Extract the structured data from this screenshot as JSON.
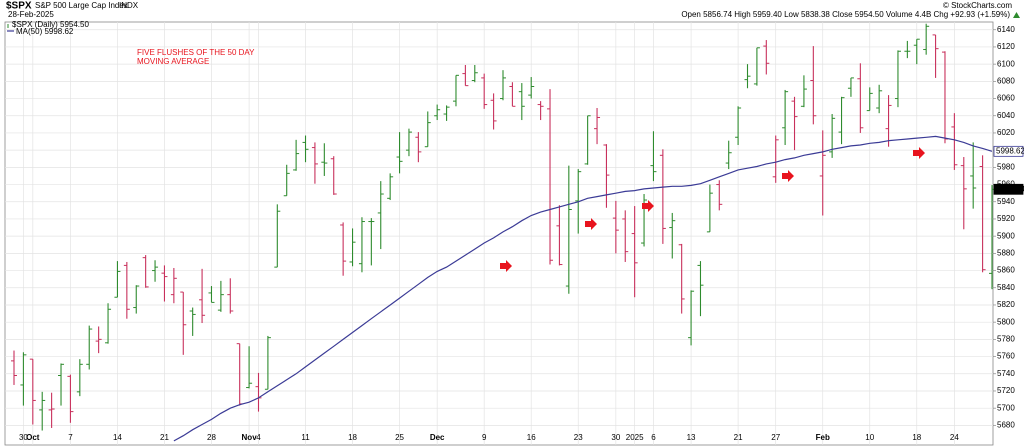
{
  "chart_data": {
    "type": "ohlc",
    "title": "$SPX",
    "subtitle": "S&P 500 Large Cap Index",
    "exchange": "INDX",
    "date": "28-Feb-2025",
    "quote": "Open 5856.74 High 5959.40 Low 5838.38 Close 5954.50 Volume 4.4B Chg +92.93 (+1.59%)",
    "credit": "© StockCharts.com",
    "annotation": [
      "FIVE FLUSHES OF THE 50 DAY",
      "MOVING AVERAGE"
    ],
    "categories": [
      null,
      "30",
      "Oct",
      null,
      null,
      null,
      "7",
      null,
      null,
      null,
      null,
      "14",
      null,
      null,
      null,
      null,
      "21",
      null,
      null,
      null,
      null,
      "28",
      null,
      null,
      null,
      "Nov",
      "4",
      null,
      null,
      null,
      null,
      "11",
      null,
      null,
      null,
      null,
      "18",
      null,
      null,
      null,
      null,
      "25",
      null,
      null,
      null,
      "Dec",
      null,
      null,
      null,
      null,
      "9",
      null,
      null,
      null,
      null,
      "16",
      null,
      null,
      null,
      null,
      "23",
      null,
      null,
      null,
      "30",
      null,
      "2025",
      null,
      "6",
      null,
      null,
      null,
      "13",
      null,
      null,
      null,
      null,
      "21",
      null,
      null,
      null,
      "27",
      null,
      null,
      null,
      null,
      "Feb",
      null,
      null,
      null,
      null,
      "10",
      null,
      null,
      null,
      null,
      "18",
      null,
      null,
      null,
      "24",
      null,
      null,
      null,
      null
    ],
    "series": [
      {
        "name": "$SPX (Daily) 5954.50",
        "up_color": "#2e8b2e",
        "down_color": "#c8305c",
        "open": [
          5755,
          5727,
          5757,
          5698,
          5698,
          5738,
          5737,
          5719,
          5751,
          5778,
          5776,
          5829,
          5866,
          5817,
          5875,
          5860,
          5857,
          5832,
          5835,
          5813,
          5826,
          5834,
          5814,
          5832,
          5775,
          5724,
          5725,
          5722,
          5864,
          5947,
          5977,
          6009,
          6003,
          5986,
          5990,
          5913,
          5870,
          5868,
          5917,
          5927,
          5944,
          5992,
          6000,
          6015,
          6004,
          6040,
          6042,
          6057,
          6089,
          6081,
          6084,
          6058,
          6060,
          6074,
          6068,
          6064,
          6053,
          6048,
          5912,
          5842,
          5941,
          5984,
          6025,
          6006,
          5921,
          5920,
          5903,
          5892,
          5982,
          5994,
          5910,
          5890,
          5782,
          5866,
          5905,
          5960,
          5985,
          6015,
          6082,
          6077,
          6121,
          5969,
          6026,
          6057,
          6051,
          6081,
          5970,
          5998,
          6021,
          6072,
          6083,
          6046,
          6049,
          6025,
          6060,
          6115,
          6122,
          6117,
          6134,
          6114,
          6027,
          5982,
          5970,
          5981,
          5856.74
        ],
        "high": [
          5767,
          5765,
          5757,
          5719,
          5718,
          5752,
          5739,
          5757,
          5796,
          5795,
          5822,
          5871,
          5870,
          5843,
          5878,
          5872,
          5866,
          5863,
          5835,
          5817,
          5862,
          5842,
          5848,
          5851,
          5775,
          5772,
          5741,
          5784,
          5937,
          5983,
          6012,
          6017,
          6009,
          6008,
          5993,
          5916,
          5909,
          5922,
          5921,
          5964,
          5973,
          6021,
          6025,
          6021,
          6045,
          6053,
          6052,
          6087,
          6099,
          6099,
          6089,
          6066,
          6093,
          6079,
          6078,
          6085,
          6057,
          6071,
          5936,
          5982,
          5978,
          6040,
          6049,
          6007,
          5941,
          5930,
          5935,
          5949,
          6022,
          6001,
          5927,
          5891,
          5837,
          5871,
          5960,
          5965,
          6011,
          6051,
          6100,
          6119,
          6128,
          6017,
          6070,
          6062,
          6087,
          6121,
          6023,
          6042,
          6062,
          6084,
          6101,
          6073,
          6076,
          6064,
          6116,
          6127,
          6129,
          6147,
          6134,
          6115,
          6043,
          5992,
          6009,
          5994,
          5959.4
        ],
        "low": [
          5727,
          5703,
          5681,
          5674,
          5677,
          5703,
          5683,
          5714,
          5745,
          5764,
          5775,
          5829,
          5804,
          5810,
          5840,
          5847,
          5824,
          5822,
          5762,
          5784,
          5799,
          5823,
          5812,
          5810,
          5703,
          5723,
          5696,
          5722,
          5864,
          5947,
          5976,
          5986,
          5961,
          5970,
          5948,
          5854,
          5865,
          5858,
          5866,
          5885,
          5942,
          5973,
          5993,
          5986,
          6004,
          6035,
          6034,
          6051,
          6075,
          6079,
          6048,
          6024,
          6058,
          6051,
          6035,
          6060,
          6035,
          5867,
          5866,
          5833,
          5903,
          5983,
          6007,
          5933,
          5880,
          5870,
          5829,
          5888,
          5964,
          5891,
          5874,
          5810,
          5773,
          5807,
          5905,
          5930,
          5978,
          6006,
          6072,
          6075,
          6088,
          5962,
          6006,
          6000,
          6050,
          6030,
          5924,
          5991,
          6007,
          6062,
          6020,
          6046,
          6043,
          6004,
          6050,
          6107,
          6100,
          6111,
          6084,
          6008,
          5977,
          5908,
          5932,
          5858,
          5838.38
        ],
        "close": [
          5738,
          5762,
          5709,
          5709,
          5699,
          5751,
          5696,
          5751,
          5792,
          5780,
          5815,
          5859,
          5815,
          5842,
          5841,
          5864,
          5853,
          5851,
          5797,
          5809,
          5808,
          5823,
          5832,
          5813,
          5705,
          5729,
          5712,
          5782,
          5929,
          5973,
          5996,
          6001,
          5984,
          5985,
          5949,
          5871,
          5893,
          5917,
          5917,
          5949,
          5969,
          5987,
          6021,
          5998,
          6032,
          6047,
          6050,
          6087,
          6075,
          6090,
          6053,
          6034,
          6084,
          6051,
          6051,
          6074,
          6051,
          5872,
          5867,
          5931,
          5975,
          6040,
          6038,
          5971,
          5907,
          5882,
          5869,
          5942,
          5975,
          5909,
          5918,
          5827,
          5836,
          5843,
          5950,
          5937,
          5997,
          6049,
          6086,
          6119,
          6101,
          6012,
          6068,
          6039,
          6071,
          6040,
          5994,
          6037,
          6061,
          6084,
          6026,
          6066,
          6069,
          6052,
          6115,
          6115,
          6129,
          6144,
          6118,
          6013,
          5983,
          5955,
          5956,
          5861,
          5954.5
        ]
      },
      {
        "name": "MA(50) 5998.62",
        "color": "#3b3b96",
        "values": [
          null,
          null,
          null,
          null,
          null,
          null,
          null,
          null,
          null,
          null,
          null,
          null,
          null,
          null,
          null,
          null,
          null,
          5662,
          5668,
          5675,
          5681,
          5687,
          5694,
          5700,
          5704,
          5707,
          5712,
          5719,
          5726,
          5733,
          5740,
          5748,
          5756,
          5764,
          5772,
          5780,
          5788,
          5796,
          5804,
          5812,
          5820,
          5828,
          5836,
          5844,
          5852,
          5859,
          5864,
          5871,
          5878,
          5885,
          5892,
          5898,
          5905,
          5911,
          5918,
          5924,
          5928,
          5931,
          5934,
          5937,
          5940,
          5944,
          5946,
          5948,
          5950,
          5952,
          5953,
          5955,
          5956,
          5957,
          5958,
          5958,
          5959,
          5961,
          5965,
          5969,
          5973,
          5977,
          5979,
          5981,
          5984,
          5986,
          5989,
          5991,
          5994,
          5996,
          5998,
          6001,
          6003,
          6005,
          6006,
          6008,
          6009,
          6011,
          6012,
          6013,
          6014,
          6015,
          6016,
          6014,
          6012,
          6009,
          6005,
          6002,
          5998.62
        ]
      }
    ],
    "price_tags": [
      {
        "value": 5998.62,
        "label": "5998.62"
      },
      {
        "value": 5954.5,
        "label": "5954.50"
      }
    ],
    "ylim": [
      5663,
      6149
    ],
    "yticks": [
      5680,
      5700,
      5720,
      5740,
      5760,
      5780,
      5800,
      5820,
      5840,
      5860,
      5880,
      5900,
      5920,
      5940,
      5960,
      5980,
      6000,
      6020,
      6040,
      6060,
      6080,
      6100,
      6120,
      6140
    ],
    "grid": true
  }
}
